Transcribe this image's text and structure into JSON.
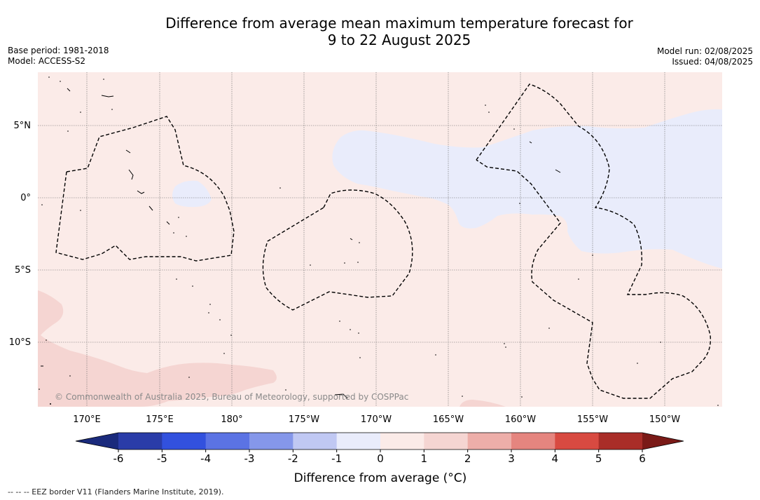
{
  "header": {
    "title_line1": "Difference from average mean maximum temperature forecast for",
    "title_line2": "9 to 22 August 2025",
    "base_period": "Base period: 1981-2018",
    "model": "Model: ACCESS-S2",
    "model_run": "Model run: 02/08/2025",
    "issued": "Issued: 04/08/2025"
  },
  "map": {
    "lat_labels": [
      "5°N",
      "0°",
      "5°S",
      "10°S"
    ],
    "lon_labels": [
      "170°E",
      "175°E",
      "180°",
      "175°W",
      "170°W",
      "165°W",
      "160°W",
      "155°W",
      "150°W"
    ],
    "copyright": "© Commonwealth of Australia 2025, Bureau of Meteorology, supported by COSPPac",
    "colors": {
      "background": "#fbebe8",
      "cool": "#e9ecfb",
      "warm": "#f5d5d2",
      "grid": "#666666",
      "eez": "#000000"
    }
  },
  "colorbar": {
    "ticks": [
      "-6",
      "-5",
      "-4",
      "-3",
      "-2",
      "-1",
      "0",
      "1",
      "2",
      "3",
      "4",
      "5",
      "6"
    ],
    "colors": [
      "#2a3ca8",
      "#3251de",
      "#5b73e4",
      "#8597ea",
      "#c0c8f3",
      "#e9ecfb",
      "#fbebe8",
      "#f5d5d2",
      "#edaea9",
      "#e5857f",
      "#d84a41",
      "#a92d28"
    ],
    "under_color": "#1a2a7c",
    "over_color": "#7a1a17",
    "title": "Difference from average (°C)"
  },
  "footer": {
    "legend": "-- -- -- EEZ border V11 (Flanders Marine Institute, 2019)."
  }
}
